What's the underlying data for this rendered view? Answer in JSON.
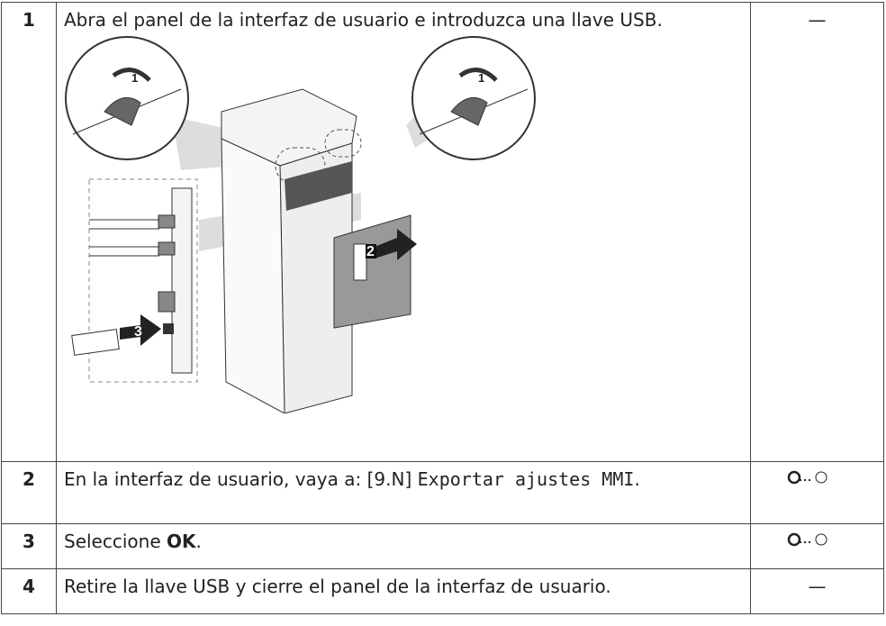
{
  "table": {
    "rows": [
      {
        "step": "1",
        "text": "Abra el panel de la interfaz de usuario e introduzca una llave USB.",
        "callouts": [
          "1",
          "1",
          "2",
          "3"
        ],
        "icon": "—"
      },
      {
        "step": "2",
        "text": "En la interfaz de usuario, vaya a: [9.N] ",
        "menu": "Exportar ajustes MMI",
        "end": "."
      },
      {
        "step": "3",
        "text": "Seleccione ",
        "button": "OK",
        "end": "."
      },
      {
        "step": "4",
        "text": "Retire la llave USB y cierre el panel de la interfaz de usuario.",
        "icon": "—"
      }
    ]
  }
}
